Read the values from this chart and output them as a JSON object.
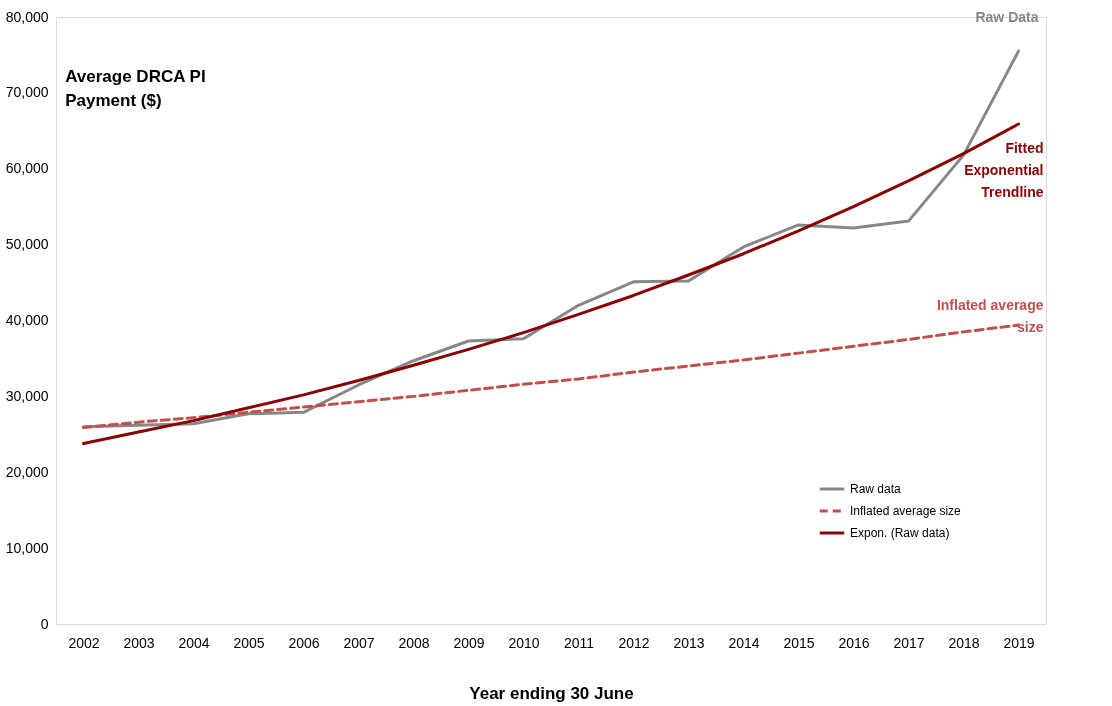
{
  "chart_data": {
    "type": "line",
    "title": "Average DRCA PI\nPayment ($)",
    "xlabel": "Year ending 30 June",
    "categories": [
      "2002",
      "2003",
      "2004",
      "2005",
      "2006",
      "2007",
      "2008",
      "2009",
      "2010",
      "2011",
      "2012",
      "2013",
      "2014",
      "2015",
      "2016",
      "2017",
      "2018",
      "2019"
    ],
    "series": [
      {
        "name": "Raw data",
        "color": "#878787",
        "line_style": "solid",
        "values": [
          26000,
          26200,
          26400,
          27700,
          27900,
          31500,
          34700,
          37300,
          37600,
          42000,
          45100,
          45200,
          49700,
          52600,
          52200,
          53100,
          61800,
          75500
        ]
      },
      {
        "name": "Inflated average size",
        "color": "#c0504d",
        "line_style": "dashed",
        "values": [
          25900,
          26600,
          27200,
          27900,
          28600,
          29300,
          30000,
          30800,
          31600,
          32300,
          33200,
          34000,
          34800,
          35700,
          36600,
          37500,
          38500,
          39400
        ]
      },
      {
        "name": "Expon. (Raw data)",
        "color": "#8b0000",
        "line_style": "solid",
        "values": [
          23800,
          25300,
          26800,
          28500,
          30200,
          32100,
          34100,
          36200,
          38400,
          40800,
          43300,
          46000,
          48800,
          51800,
          55000,
          58400,
          62000,
          65900
        ]
      }
    ],
    "annotations": [
      "Raw Data",
      "Inflated average\nsize",
      "Fitted\nExponential\nTrendline"
    ],
    "ylim": [
      0,
      80000
    ],
    "yticks": [
      0,
      {
        "value": 10000,
        "label": "10,000"
      },
      {
        "value": 20000,
        "label": "20,000"
      },
      {
        "value": 30000,
        "label": "30,000"
      },
      {
        "value": 40000,
        "label": "40,000"
      },
      {
        "value": 50000,
        "label": "50,000"
      },
      {
        "value": 60000,
        "label": "60,000"
      },
      {
        "value": 70000,
        "label": "70,000"
      },
      {
        "value": 80000,
        "label": "80,000"
      }
    ],
    "grid": false,
    "legend": "bottom right",
    "marker": "none"
  }
}
